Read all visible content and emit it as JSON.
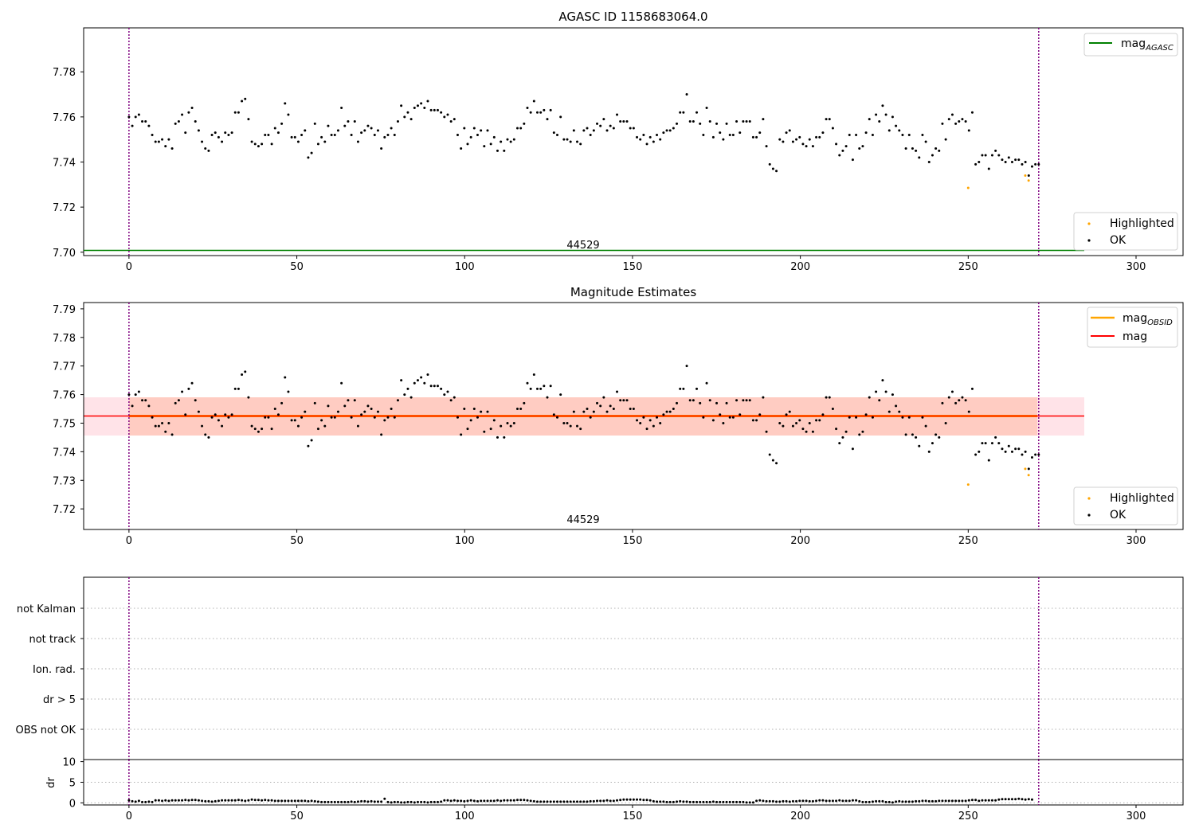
{
  "chart_data": [
    {
      "type": "scatter",
      "title": "AGASC ID 1158683064.0",
      "xlabel": "",
      "ylabel": "",
      "xlim": [
        -13.5,
        314
      ],
      "ylim": [
        7.6985,
        7.7995
      ],
      "xticks": [
        "0",
        "50",
        "100",
        "150",
        "200",
        "250",
        "300"
      ],
      "yticks": [
        "7.70",
        "7.72",
        "7.74",
        "7.76",
        "7.78"
      ],
      "vlines": [
        0,
        271
      ],
      "annotation": "44529",
      "hlines": [
        {
          "name": "mag",
          "name_sub": "AGASC",
          "y": 7.701,
          "x_end": 285,
          "color": "#008000"
        }
      ],
      "legend_top": [
        {
          "name": "mag",
          "sub": "AGASC",
          "color": "#008000"
        }
      ],
      "legend_bottom": [
        {
          "name": "Highlighted",
          "color": "#ffa500"
        },
        {
          "name": "OK",
          "color": "#000000"
        }
      ],
      "highlighted": {
        "x": [
          250,
          267,
          268
        ],
        "y": [
          7.7285,
          7.734,
          7.7318
        ]
      }
    },
    {
      "type": "scatter",
      "title": "Magnitude Estimates",
      "xlabel": "",
      "ylabel": "",
      "xlim": [
        -13.5,
        314
      ],
      "ylim": [
        7.7128,
        7.7922
      ],
      "xticks": [
        "0",
        "50",
        "100",
        "150",
        "200",
        "250",
        "300"
      ],
      "yticks": [
        "7.72",
        "7.73",
        "7.74",
        "7.75",
        "7.76",
        "7.77",
        "7.78",
        "7.79"
      ],
      "vlines": [
        0,
        271
      ],
      "annotation": "44529",
      "mag": 7.7532,
      "mag_band": [
        7.7462,
        7.7603
      ],
      "mag_obsid": 7.7532,
      "obsid_x": [
        0,
        271
      ],
      "legend_top": [
        {
          "name": "mag",
          "sub": "OBSID",
          "color": "#ffa500"
        },
        {
          "name": "mag",
          "sub": "",
          "color": "#ff0000"
        }
      ],
      "legend_bottom": [
        {
          "name": "Highlighted",
          "color": "#ffa500"
        },
        {
          "name": "OK",
          "color": "#000000"
        }
      ],
      "highlighted": {
        "x": [
          250,
          267,
          268
        ],
        "y": [
          7.7285,
          7.734,
          7.7318
        ]
      }
    },
    {
      "type": "scatter",
      "title": "",
      "categories": [
        "not Kalman",
        "not track",
        "Ion. rad.",
        "dr > 5",
        "OBS not OK"
      ],
      "xlim": [
        -13.5,
        314
      ],
      "vlines": [
        0,
        271
      ],
      "flags": []
    },
    {
      "type": "scatter",
      "title": "",
      "ylabel": "dr",
      "xlim": [
        -13.5,
        314
      ],
      "ylim": [
        -0.5,
        10.5
      ],
      "xticks": [
        "0",
        "50",
        "100",
        "150",
        "200",
        "250",
        "300"
      ],
      "yticks": [
        "0",
        "5",
        "10"
      ],
      "vlines": [
        0,
        271
      ],
      "dr_range": [
        0.1,
        1.1
      ]
    }
  ],
  "ok_series": {
    "x_start": 0,
    "x_end": 271,
    "mag": [
      7.76,
      7.756,
      7.76,
      7.761,
      7.758,
      7.758,
      7.756,
      7.752,
      7.749,
      7.749,
      7.75,
      7.747,
      7.75,
      7.746,
      7.757,
      7.758,
      7.761,
      7.753,
      7.762,
      7.764,
      7.758,
      7.754,
      7.749,
      7.746,
      7.745,
      7.752,
      7.753,
      7.751,
      7.749,
      7.753,
      7.752,
      7.753,
      7.762,
      7.762,
      7.767,
      7.768,
      7.759,
      7.749,
      7.748,
      7.747,
      7.748,
      7.752,
      7.752,
      7.748,
      7.755,
      7.753,
      7.757,
      7.766,
      7.761,
      7.751,
      7.751,
      7.749,
      7.752,
      7.754,
      7.742,
      7.744,
      7.757,
      7.748,
      7.751,
      7.749,
      7.756,
      7.752,
      7.752,
      7.754,
      7.764,
      7.756,
      7.758,
      7.752,
      7.758,
      7.749,
      7.753,
      7.754,
      7.756,
      7.755,
      7.752,
      7.754,
      7.746,
      7.751,
      7.752,
      7.755,
      7.752,
      7.758,
      7.765,
      7.76,
      7.762,
      7.759,
      7.764,
      7.765,
      7.766,
      7.764,
      7.767,
      7.763,
      7.763,
      7.763,
      7.762,
      7.76,
      7.761,
      7.758,
      7.759,
      7.752,
      7.746,
      7.755,
      7.748,
      7.751,
      7.755,
      7.752,
      7.754,
      7.747,
      7.754,
      7.748,
      7.751,
      7.745,
      7.749,
      7.745,
      7.75,
      7.749,
      7.75,
      7.755,
      7.755,
      7.757,
      7.764,
      7.762,
      7.767,
      7.762,
      7.762,
      7.763,
      7.759,
      7.763,
      7.753,
      7.752,
      7.76,
      7.75,
      7.75,
      7.749,
      7.754,
      7.749,
      7.748,
      7.754,
      7.755,
      7.752,
      7.754,
      7.757,
      7.756,
      7.759,
      7.754,
      7.756,
      7.755,
      7.761,
      7.758,
      7.758,
      7.758,
      7.755,
      7.755,
      7.751,
      7.75,
      7.752,
      7.748,
      7.751,
      7.749,
      7.752,
      7.75,
      7.753,
      7.754,
      7.754,
      7.755,
      7.757,
      7.762,
      7.762,
      7.77,
      7.758,
      7.758,
      7.762,
      7.757,
      7.752,
      7.764,
      7.758,
      7.751,
      7.757,
      7.753,
      7.75,
      7.757,
      7.752,
      7.752,
      7.758,
      7.753,
      7.758,
      7.758,
      7.758,
      7.751,
      7.751,
      7.753,
      7.759,
      7.747,
      7.739,
      7.737,
      7.736,
      7.75,
      7.749,
      7.753,
      7.754,
      7.749,
      7.75,
      7.751,
      7.748,
      7.747,
      7.75,
      7.747,
      7.751,
      7.751,
      7.753,
      7.759,
      7.759,
      7.755,
      7.748,
      7.743,
      7.745,
      7.747,
      7.752,
      7.741,
      7.752,
      7.746,
      7.747,
      7.753,
      7.759,
      7.752,
      7.761,
      7.758,
      7.765,
      7.761,
      7.754,
      7.76,
      7.756,
      7.754,
      7.752,
      7.746,
      7.752,
      7.746,
      7.745,
      7.742,
      7.752,
      7.749,
      7.74,
      7.743,
      7.746,
      7.745,
      7.757,
      7.75,
      7.759,
      7.761,
      7.757,
      7.758,
      7.759,
      7.758,
      7.754,
      7.762,
      7.739,
      7.74,
      7.743,
      7.743,
      7.737,
      7.743,
      7.745,
      7.743,
      7.741,
      7.74,
      7.742,
      7.74,
      7.741,
      7.741,
      7.739,
      7.74,
      7.734,
      7.738,
      7.739,
      7.739
    ],
    "dr": [
      0.6,
      0.4,
      0.3,
      0.5,
      0.2,
      0.2,
      0.3,
      0.2,
      0.6,
      0.6,
      0.5,
      0.6,
      0.5,
      0.6,
      0.6,
      0.6,
      0.6,
      0.7,
      0.6,
      0.7,
      0.7,
      0.6,
      0.5,
      0.4,
      0.4,
      0.3,
      0.4,
      0.5,
      0.6,
      0.6,
      0.6,
      0.6,
      0.6,
      0.7,
      0.6,
      0.5,
      0.6,
      0.8,
      0.7,
      0.7,
      0.6,
      0.7,
      0.6,
      0.6,
      0.5,
      0.5,
      0.5,
      0.5,
      0.5,
      0.5,
      0.5,
      0.5,
      0.5,
      0.5,
      0.4,
      0.5,
      0.4,
      0.3,
      0.2,
      0.2,
      0.2,
      0.2,
      0.2,
      0.2,
      0.2,
      0.2,
      0.2,
      0.3,
      0.2,
      0.3,
      0.4,
      0.4,
      0.3,
      0.4,
      0.3,
      0.3,
      0.3,
      1.0,
      0.2,
      0.1,
      0.2,
      0.2,
      0.1,
      0.1,
      0.2,
      0.2,
      0.1,
      0.2,
      0.2,
      0.2,
      0.1,
      0.2,
      0.2,
      0.2,
      0.3,
      0.6,
      0.6,
      0.5,
      0.6,
      0.5,
      0.5,
      0.4,
      0.5,
      0.6,
      0.5,
      0.4,
      0.5,
      0.5,
      0.5,
      0.5,
      0.5,
      0.6,
      0.5,
      0.6,
      0.6,
      0.6,
      0.6,
      0.7,
      0.7,
      0.7,
      0.6,
      0.5,
      0.4,
      0.3,
      0.3,
      0.3,
      0.3,
      0.3,
      0.3,
      0.3,
      0.3,
      0.3,
      0.3,
      0.3,
      0.3,
      0.3,
      0.3,
      0.3,
      0.3,
      0.4,
      0.4,
      0.5,
      0.5,
      0.5,
      0.6,
      0.5,
      0.5,
      0.6,
      0.7,
      0.8,
      0.8,
      0.8,
      0.8,
      0.8,
      0.8,
      0.7,
      0.7,
      0.6,
      0.4,
      0.3,
      0.3,
      0.3,
      0.2,
      0.2,
      0.2,
      0.3,
      0.4,
      0.3,
      0.3,
      0.2,
      0.2,
      0.2,
      0.2,
      0.2,
      0.2,
      0.2,
      0.3,
      0.2,
      0.2,
      0.2,
      0.2,
      0.2,
      0.2,
      0.2,
      0.2,
      0.2,
      0.1,
      0.1,
      0.1,
      0.5,
      0.6,
      0.5,
      0.4,
      0.4,
      0.4,
      0.3,
      0.3,
      0.4,
      0.4,
      0.3,
      0.4,
      0.4,
      0.5,
      0.5,
      0.5,
      0.4,
      0.4,
      0.5,
      0.6,
      0.6,
      0.5,
      0.5,
      0.5,
      0.5,
      0.6,
      0.5,
      0.5,
      0.5,
      0.6,
      0.6,
      0.4,
      0.2,
      0.2,
      0.2,
      0.3,
      0.4,
      0.4,
      0.4,
      0.2,
      0.2,
      0.1,
      0.3,
      0.4,
      0.3,
      0.3,
      0.3,
      0.3,
      0.4,
      0.4,
      0.5,
      0.5,
      0.4,
      0.4,
      0.4,
      0.5,
      0.5,
      0.5,
      0.5,
      0.5,
      0.5,
      0.5,
      0.5,
      0.5,
      0.6,
      0.7,
      0.7,
      0.5,
      0.6,
      0.6,
      0.6,
      0.6,
      0.6,
      0.8,
      0.9,
      0.9,
      0.9,
      0.9,
      0.9,
      1.0,
      0.9,
      0.8,
      0.9,
      0.8
    ]
  },
  "colors": {
    "ok": "#000000",
    "highlighted": "#ffa500",
    "vline": "#800080",
    "agasc_line": "#008000",
    "mag_line": "#ff0000",
    "obsid_line": "#ffa500",
    "band_outer": "#ffc0cb",
    "band_inner": "#ffa07a",
    "grid": "#b0b0b0"
  }
}
